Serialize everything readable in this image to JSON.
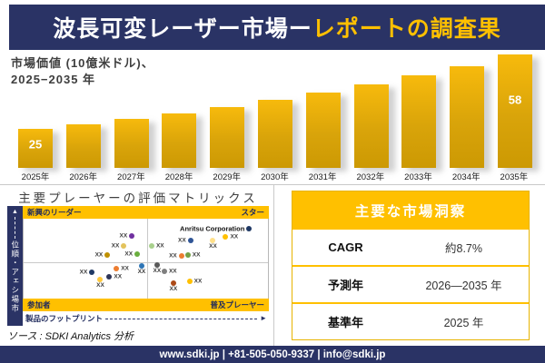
{
  "header": {
    "title_main": "波長可変レーザー市場ー",
    "title_accent": "レポートの調査果"
  },
  "chart_data": [
    {
      "type": "bar",
      "title": "市場価値 (10億米ドル)、2025−2035 年",
      "title_lines": [
        "市場価値 (10億米ドル)、",
        "2025−2035 年"
      ],
      "categories": [
        "2025年",
        "2026年",
        "2027年",
        "2028年",
        "2029年",
        "2030年",
        "2031年",
        "2032年",
        "2033年",
        "2034年",
        "2035年"
      ],
      "values": [
        25,
        27.2,
        29.5,
        32.1,
        34.9,
        37.9,
        41.2,
        44.8,
        48.7,
        52.9,
        58
      ],
      "unit": "10億米ドル",
      "shown_labels": [
        {
          "index": 0,
          "text": "25"
        },
        {
          "index": 10,
          "text": "58"
        }
      ],
      "ylim": [
        0,
        60
      ],
      "grid": false,
      "bar_color": "#D9A40A"
    },
    {
      "type": "scatter",
      "title": "主要プレーヤーの評価マトリックス",
      "x_axis_label": "製品のフットプリント",
      "y_axis_label": "市場シェア・順位",
      "quadrant_labels": {
        "top_left": "新興のリーダー",
        "top_right": "スター",
        "bottom_left": "参加者",
        "bottom_right": "普及プレーヤー"
      },
      "points": [
        {
          "x_pct": 44.3,
          "y_pct": 21.6,
          "color": "#7030A0",
          "label": "XX",
          "label_side": "left"
        },
        {
          "x_pct": 41.0,
          "y_pct": 34.1,
          "color": "#E3C35C",
          "label": "XX",
          "label_side": "left"
        },
        {
          "x_pct": 34.3,
          "y_pct": 45.5,
          "color": "#BF9000",
          "label": "XX",
          "label_side": "left"
        },
        {
          "x_pct": 46.5,
          "y_pct": 44.3,
          "color": "#6AAE3F",
          "label": "XX",
          "label_side": "left"
        },
        {
          "x_pct": 52.4,
          "y_pct": 34.1,
          "color": "#A8D08D",
          "label": "XX",
          "label_side": "right"
        },
        {
          "x_pct": 68.3,
          "y_pct": 27.3,
          "color": "#2F5496",
          "label": "XX",
          "label_side": "left"
        },
        {
          "x_pct": 77.5,
          "y_pct": 27.3,
          "color": "#FFE08A",
          "label": "XX",
          "label_side": "below"
        },
        {
          "x_pct": 82.7,
          "y_pct": 22.7,
          "color": "#FFC000",
          "label": "XX",
          "label_side": "right"
        },
        {
          "x_pct": 64.6,
          "y_pct": 46.6,
          "color": "#ED7D31",
          "label": "XX",
          "label_side": "left"
        },
        {
          "x_pct": 67.2,
          "y_pct": 45.5,
          "color": "#74A045",
          "label": "XX",
          "label_side": "right"
        },
        {
          "x_pct": 92.3,
          "y_pct": 12.5,
          "color": "#1F3864",
          "label": "Anritsu Corporation",
          "label_side": "left",
          "emphasis": true
        },
        {
          "x_pct": 38.0,
          "y_pct": 62.5,
          "color": "#ED7D31",
          "label": "XX",
          "label_side": "right"
        },
        {
          "x_pct": 48.3,
          "y_pct": 59.1,
          "color": "#2E75B6",
          "label": "XX",
          "label_side": "below"
        },
        {
          "x_pct": 28.0,
          "y_pct": 67.0,
          "color": "#1F3864",
          "label": "XX",
          "label_side": "left"
        },
        {
          "x_pct": 35.1,
          "y_pct": 72.7,
          "color": "#2F3557",
          "label": "XX",
          "label_side": "right"
        },
        {
          "x_pct": 31.4,
          "y_pct": 76.1,
          "color": "#FFC93C",
          "label": "XX",
          "label_side": "below"
        },
        {
          "x_pct": 54.6,
          "y_pct": 58.0,
          "color": "#595959",
          "label": "XX",
          "label_side": "below"
        },
        {
          "x_pct": 57.6,
          "y_pct": 65.9,
          "color": "#7F7F7F",
          "label": "XX",
          "label_side": "right"
        },
        {
          "x_pct": 61.3,
          "y_pct": 80.7,
          "color": "#AC4A18",
          "label": "XX",
          "label_side": "below"
        },
        {
          "x_pct": 67.9,
          "y_pct": 78.4,
          "color": "#FFC000",
          "label": "XX",
          "label_side": "right"
        }
      ]
    }
  ],
  "insights": {
    "title": "主要な市場洞察",
    "rows": [
      {
        "label": "CAGR",
        "value": "約8.7%"
      },
      {
        "label": "予測年",
        "value": "2026—2035 年"
      },
      {
        "label": "基準年",
        "value": "2025 年"
      }
    ]
  },
  "source_note": "ソース : SDKI Analytics 分析",
  "footer": {
    "text": "www.sdki.jp | +81-505-050-9337 | info@sdki.jp"
  },
  "colors": {
    "navy": "#2A3365",
    "gold": "#FFC000",
    "bar_gold": "#D9A40A"
  }
}
